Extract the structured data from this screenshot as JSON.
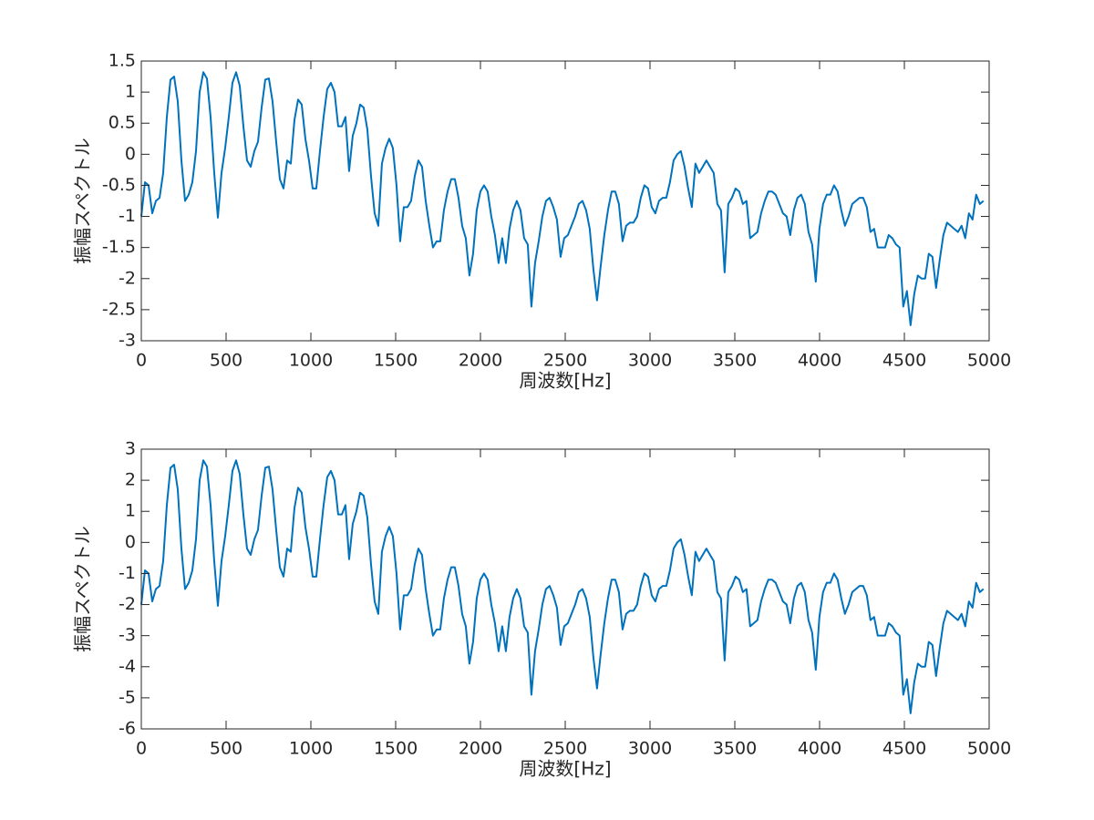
{
  "chart_data": [
    {
      "type": "line",
      "xlabel": "周波数[Hz]",
      "ylabel": "振幅スペクトル",
      "color": "#0072bd",
      "xlim": [
        0,
        5000
      ],
      "xticks": [
        0,
        500,
        1000,
        1500,
        2000,
        2500,
        3000,
        3500,
        4000,
        4500,
        5000
      ],
      "ylim": [
        -3,
        1.5
      ],
      "yticks": [
        -3,
        -2.5,
        -2,
        -1.5,
        -1,
        -0.5,
        0,
        0.5,
        1,
        1.5
      ],
      "x": [
        0,
        21.5,
        43,
        64.5,
        86,
        107.5,
        129,
        150.5,
        172,
        193.5,
        215,
        236.5,
        258,
        279.5,
        301,
        322.5,
        344,
        365.5,
        387,
        408.5,
        430,
        451.5,
        473,
        494.5,
        516,
        537.5,
        559,
        580.5,
        602,
        623.5,
        645,
        666.5,
        688,
        709.5,
        731,
        752.5,
        774,
        795.5,
        817,
        838.5,
        860,
        881.5,
        903,
        924.5,
        946,
        967.5,
        989,
        1010.5,
        1032,
        1053.5,
        1075,
        1096.5,
        1118,
        1139.5,
        1161,
        1182.5,
        1204,
        1225.5,
        1247,
        1268.5,
        1290,
        1311.5,
        1333,
        1354.5,
        1376,
        1397.5,
        1419,
        1440.5,
        1462,
        1483.5,
        1505,
        1526.5,
        1548,
        1569.5,
        1591,
        1612.5,
        1634,
        1655.5,
        1677,
        1698.5,
        1720,
        1741.5,
        1763,
        1784.5,
        1806,
        1827.5,
        1849,
        1870.5,
        1892,
        1913.5,
        1935,
        1956.5,
        1978,
        1999.5,
        2021,
        2042.5,
        2064,
        2085.5,
        2107,
        2128.5,
        2150,
        2171.5,
        2193,
        2214.5,
        2236,
        2257.5,
        2279,
        2300.5,
        2322,
        2343.5,
        2365,
        2386.5,
        2408,
        2429.5,
        2451,
        2472.5,
        2494,
        2515.5,
        2537,
        2558.5,
        2580,
        2601.5,
        2623,
        2644.5,
        2666,
        2687.5,
        2709,
        2730.5,
        2752,
        2773.5,
        2795,
        2816.5,
        2838,
        2859.5,
        2881,
        2902.5,
        2924,
        2945.5,
        2967,
        2988.5,
        3010,
        3031.5,
        3053,
        3074.5,
        3096,
        3117.5,
        3139,
        3160.5,
        3182,
        3203.5,
        3225,
        3246.5,
        3268,
        3289.5,
        3311,
        3332.5,
        3354,
        3375.5,
        3397,
        3418.5,
        3440,
        3461.5,
        3483,
        3504.5,
        3526,
        3547.5,
        3569,
        3590.5,
        3612,
        3633.5,
        3655,
        3676.5,
        3698,
        3719.5,
        3741,
        3762.5,
        3784,
        3805.5,
        3827,
        3848.5,
        3870,
        3891.5,
        3913,
        3934.5,
        3956,
        3977.5,
        3999,
        4020.5,
        4042,
        4063.5,
        4085,
        4106.5,
        4128,
        4149.5,
        4171,
        4192.5,
        4214,
        4235.5,
        4257,
        4278.5,
        4300,
        4321.5,
        4343,
        4364.5,
        4386,
        4407.5,
        4429,
        4450.5,
        4472,
        4493.5,
        4515,
        4536.5,
        4558,
        4579.5,
        4601,
        4622.5,
        4644,
        4665.5,
        4687,
        4708.5,
        4730,
        4751.5,
        4773,
        4794.5,
        4816,
        4837.5,
        4859,
        4880.5,
        4902,
        4923.5,
        4945,
        4966.5
      ],
      "values": [
        -1.0,
        -0.45,
        -0.5,
        -0.95,
        -0.75,
        -0.7,
        -0.3,
        0.6,
        1.2,
        1.25,
        0.85,
        -0.1,
        -0.75,
        -0.65,
        -0.45,
        0.05,
        1.0,
        1.32,
        1.22,
        0.6,
        -0.3,
        -1.02,
        -0.3,
        0.1,
        0.6,
        1.15,
        1.32,
        1.1,
        0.45,
        -0.1,
        -0.2,
        0.05,
        0.2,
        0.75,
        1.2,
        1.22,
        0.85,
        0.2,
        -0.4,
        -0.55,
        -0.1,
        -0.15,
        0.55,
        0.88,
        0.8,
        0.25,
        -0.1,
        -0.55,
        -0.55,
        0.05,
        0.6,
        1.05,
        1.15,
        1.0,
        0.45,
        0.45,
        0.6,
        -0.27,
        0.3,
        0.5,
        0.8,
        0.75,
        0.4,
        -0.35,
        -0.95,
        -1.15,
        -0.15,
        0.1,
        0.25,
        0.1,
        -0.5,
        -1.4,
        -0.85,
        -0.85,
        -0.75,
        -0.35,
        -0.1,
        -0.2,
        -0.75,
        -1.15,
        -1.5,
        -1.4,
        -1.4,
        -0.9,
        -0.6,
        -0.4,
        -0.4,
        -0.7,
        -1.15,
        -1.35,
        -1.95,
        -1.6,
        -0.9,
        -0.6,
        -0.5,
        -0.6,
        -1.0,
        -1.3,
        -1.75,
        -1.35,
        -1.75,
        -1.2,
        -0.9,
        -0.75,
        -0.9,
        -1.35,
        -1.45,
        -2.45,
        -1.75,
        -1.4,
        -1.0,
        -0.75,
        -0.7,
        -0.85,
        -1.05,
        -1.65,
        -1.35,
        -1.3,
        -1.15,
        -1.0,
        -0.8,
        -0.75,
        -0.9,
        -1.2,
        -1.85,
        -2.35,
        -1.8,
        -1.3,
        -0.9,
        -0.6,
        -0.6,
        -0.8,
        -1.4,
        -1.15,
        -1.1,
        -1.1,
        -1.0,
        -0.7,
        -0.5,
        -0.55,
        -0.85,
        -0.95,
        -0.75,
        -0.7,
        -0.7,
        -0.45,
        -0.1,
        0.0,
        0.05,
        -0.2,
        -0.55,
        -0.85,
        -0.15,
        -0.3,
        -0.2,
        -0.1,
        -0.2,
        -0.3,
        -0.8,
        -0.9,
        -1.9,
        -0.8,
        -0.7,
        -0.55,
        -0.6,
        -0.8,
        -0.75,
        -1.35,
        -1.3,
        -1.25,
        -0.95,
        -0.75,
        -0.6,
        -0.6,
        -0.65,
        -0.8,
        -0.95,
        -1.0,
        -1.3,
        -0.9,
        -0.7,
        -0.65,
        -0.8,
        -1.25,
        -1.45,
        -2.05,
        -1.2,
        -0.8,
        -0.65,
        -0.65,
        -0.5,
        -0.6,
        -0.9,
        -1.15,
        -1.0,
        -0.8,
        -0.75,
        -0.7,
        -0.7,
        -0.85,
        -1.25,
        -1.2,
        -1.5,
        -1.5,
        -1.5,
        -1.3,
        -1.35,
        -1.45,
        -1.5,
        -2.45,
        -2.2,
        -2.75,
        -2.25,
        -1.95,
        -2.0,
        -2.0,
        -1.6,
        -1.65,
        -2.15,
        -1.7,
        -1.3,
        -1.1,
        -1.15,
        -1.2,
        -1.25,
        -1.15,
        -1.35,
        -0.95,
        -1.05,
        -0.65,
        -0.8,
        -0.75
      ]
    },
    {
      "type": "line",
      "xlabel": "周波数[Hz]",
      "ylabel": "振幅スペクトル",
      "color": "#0072bd",
      "xlim": [
        0,
        5000
      ],
      "xticks": [
        0,
        500,
        1000,
        1500,
        2000,
        2500,
        3000,
        3500,
        4000,
        4500,
        5000
      ],
      "ylim": [
        -6,
        3
      ],
      "yticks": [
        -6,
        -5,
        -4,
        -3,
        -2,
        -1,
        0,
        1,
        2,
        3
      ],
      "x": [
        0,
        21.5,
        43,
        64.5,
        86,
        107.5,
        129,
        150.5,
        172,
        193.5,
        215,
        236.5,
        258,
        279.5,
        301,
        322.5,
        344,
        365.5,
        387,
        408.5,
        430,
        451.5,
        473,
        494.5,
        516,
        537.5,
        559,
        580.5,
        602,
        623.5,
        645,
        666.5,
        688,
        709.5,
        731,
        752.5,
        774,
        795.5,
        817,
        838.5,
        860,
        881.5,
        903,
        924.5,
        946,
        967.5,
        989,
        1010.5,
        1032,
        1053.5,
        1075,
        1096.5,
        1118,
        1139.5,
        1161,
        1182.5,
        1204,
        1225.5,
        1247,
        1268.5,
        1290,
        1311.5,
        1333,
        1354.5,
        1376,
        1397.5,
        1419,
        1440.5,
        1462,
        1483.5,
        1505,
        1526.5,
        1548,
        1569.5,
        1591,
        1612.5,
        1634,
        1655.5,
        1677,
        1698.5,
        1720,
        1741.5,
        1763,
        1784.5,
        1806,
        1827.5,
        1849,
        1870.5,
        1892,
        1913.5,
        1935,
        1956.5,
        1978,
        1999.5,
        2021,
        2042.5,
        2064,
        2085.5,
        2107,
        2128.5,
        2150,
        2171.5,
        2193,
        2214.5,
        2236,
        2257.5,
        2279,
        2300.5,
        2322,
        2343.5,
        2365,
        2386.5,
        2408,
        2429.5,
        2451,
        2472.5,
        2494,
        2515.5,
        2537,
        2558.5,
        2580,
        2601.5,
        2623,
        2644.5,
        2666,
        2687.5,
        2709,
        2730.5,
        2752,
        2773.5,
        2795,
        2816.5,
        2838,
        2859.5,
        2881,
        2902.5,
        2924,
        2945.5,
        2967,
        2988.5,
        3010,
        3031.5,
        3053,
        3074.5,
        3096,
        3117.5,
        3139,
        3160.5,
        3182,
        3203.5,
        3225,
        3246.5,
        3268,
        3289.5,
        3311,
        3332.5,
        3354,
        3375.5,
        3397,
        3418.5,
        3440,
        3461.5,
        3483,
        3504.5,
        3526,
        3547.5,
        3569,
        3590.5,
        3612,
        3633.5,
        3655,
        3676.5,
        3698,
        3719.5,
        3741,
        3762.5,
        3784,
        3805.5,
        3827,
        3848.5,
        3870,
        3891.5,
        3913,
        3934.5,
        3956,
        3977.5,
        3999,
        4020.5,
        4042,
        4063.5,
        4085,
        4106.5,
        4128,
        4149.5,
        4171,
        4192.5,
        4214,
        4235.5,
        4257,
        4278.5,
        4300,
        4321.5,
        4343,
        4364.5,
        4386,
        4407.5,
        4429,
        4450.5,
        4472,
        4493.5,
        4515,
        4536.5,
        4558,
        4579.5,
        4601,
        4622.5,
        4644,
        4665.5,
        4687,
        4708.5,
        4730,
        4751.5,
        4773,
        4794.5,
        4816,
        4837.5,
        4859,
        4880.5,
        4902,
        4923.5,
        4945,
        4966.5
      ],
      "values": [
        -2,
        -0.9,
        -1,
        -1.9,
        -1.5,
        -1.4,
        -0.6,
        1.2,
        2.4,
        2.5,
        1.7,
        -0.2,
        -1.5,
        -1.3,
        -0.9,
        0.1,
        2,
        2.64,
        2.44,
        1.2,
        -0.6,
        -2.04,
        -0.6,
        0.2,
        1.2,
        2.3,
        2.64,
        2.2,
        0.9,
        -0.2,
        -0.4,
        0.1,
        0.4,
        1.5,
        2.4,
        2.44,
        1.7,
        0.4,
        -0.8,
        -1.1,
        -0.2,
        -0.3,
        1.1,
        1.76,
        1.6,
        0.5,
        -0.2,
        -1.1,
        -1.1,
        0.1,
        1.2,
        2.1,
        2.3,
        2,
        0.9,
        0.9,
        1.2,
        -0.54,
        0.6,
        1,
        1.6,
        1.5,
        0.8,
        -0.7,
        -1.9,
        -2.3,
        -0.3,
        0.2,
        0.5,
        0.2,
        -1,
        -2.8,
        -1.7,
        -1.7,
        -1.5,
        -0.7,
        -0.2,
        -0.4,
        -1.5,
        -2.3,
        -3,
        -2.8,
        -2.8,
        -1.8,
        -1.2,
        -0.8,
        -0.8,
        -1.4,
        -2.3,
        -2.7,
        -3.9,
        -3.2,
        -1.8,
        -1.2,
        -1,
        -1.2,
        -2,
        -2.6,
        -3.5,
        -2.7,
        -3.5,
        -2.4,
        -1.8,
        -1.5,
        -1.8,
        -2.7,
        -2.9,
        -4.9,
        -3.5,
        -2.8,
        -2,
        -1.5,
        -1.4,
        -1.7,
        -2.1,
        -3.3,
        -2.7,
        -2.6,
        -2.3,
        -2,
        -1.6,
        -1.5,
        -1.8,
        -2.4,
        -3.7,
        -4.7,
        -3.6,
        -2.6,
        -1.8,
        -1.2,
        -1.2,
        -1.6,
        -2.8,
        -2.3,
        -2.2,
        -2.2,
        -2,
        -1.4,
        -1,
        -1.1,
        -1.7,
        -1.9,
        -1.5,
        -1.4,
        -1.4,
        -0.9,
        -0.2,
        0,
        0.1,
        -0.4,
        -1.1,
        -1.7,
        -0.3,
        -0.6,
        -0.4,
        -0.2,
        -0.4,
        -0.6,
        -1.6,
        -1.8,
        -3.8,
        -1.6,
        -1.4,
        -1.1,
        -1.2,
        -1.6,
        -1.5,
        -2.7,
        -2.6,
        -2.5,
        -1.9,
        -1.5,
        -1.2,
        -1.2,
        -1.3,
        -1.6,
        -1.9,
        -2,
        -2.6,
        -1.8,
        -1.4,
        -1.3,
        -1.6,
        -2.5,
        -2.9,
        -4.1,
        -2.4,
        -1.6,
        -1.3,
        -1.3,
        -1,
        -1.2,
        -1.8,
        -2.3,
        -2,
        -1.6,
        -1.5,
        -1.4,
        -1.4,
        -1.7,
        -2.5,
        -2.4,
        -3,
        -3,
        -3,
        -2.6,
        -2.7,
        -2.9,
        -3,
        -4.9,
        -4.4,
        -5.5,
        -4.5,
        -3.9,
        -4,
        -4,
        -3.2,
        -3.3,
        -4.3,
        -3.4,
        -2.6,
        -2.2,
        -2.3,
        -2.4,
        -2.5,
        -2.3,
        -2.7,
        -1.9,
        -2.1,
        -1.3,
        -1.6,
        -1.5
      ]
    }
  ]
}
